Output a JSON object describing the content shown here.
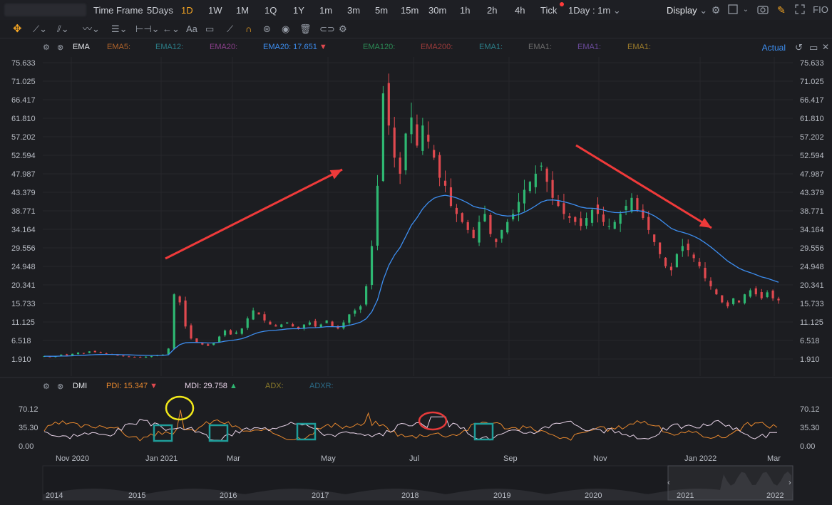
{
  "toolbar": {
    "time_frame_label": "Time Frame",
    "timeframes": [
      "5Days",
      "1D",
      "1W",
      "1M",
      "1Q",
      "1Y",
      "1m",
      "3m",
      "5m",
      "15m",
      "30m",
      "1h",
      "2h",
      "4h",
      "Tick"
    ],
    "active_timeframe": "1D",
    "interval_label": "1Day : 1m",
    "display_label": "Display",
    "brand_label": "FIO",
    "text_tool_label": "Aa",
    "icons": [
      "settings-icon",
      "checkbox-icon",
      "camera-icon",
      "pencil-icon",
      "fullscreen-icon"
    ]
  },
  "legend": {
    "indicator": "EMA",
    "items": [
      {
        "label": "EMA5:",
        "color": "#b1642a"
      },
      {
        "label": "EMA12:",
        "color": "#2b7c86"
      },
      {
        "label": "EMA20:",
        "color": "#8a3f8a"
      },
      {
        "label": "EMA20: 17.651",
        "color": "#3d8ef0",
        "arrow": "▼"
      },
      {
        "label": "EMA120:",
        "color": "#2b8a55"
      },
      {
        "label": "EMA200:",
        "color": "#9a3a3a"
      },
      {
        "label": "EMA1:",
        "color": "#2b7c86"
      },
      {
        "label": "EMA1:",
        "color": "#6a6a6a"
      },
      {
        "label": "EMA1:",
        "color": "#6a4a9a"
      },
      {
        "label": "EMA1:",
        "color": "#9a7a2a"
      }
    ],
    "actual_label": "Actual"
  },
  "dmi_legend": {
    "indicator": "DMI",
    "pdi": "PDI: 15.347",
    "mdi": "MDI: 29.758",
    "adx": "ADX:",
    "adxr": "ADXR:"
  },
  "colors": {
    "up": "#2eb872",
    "down": "#e0494f",
    "ema": "#3d8ef0",
    "pdi": "#e8882e",
    "mdi": "#e9d4e9",
    "annotation_arrow": "#ef3a3a",
    "yellow_circle": "#f1e81a",
    "red_circle": "#e53a3a",
    "teal_box": "#1f9d9a"
  },
  "chart_data": {
    "type": "candlestick",
    "y_ticks": [
      "75.633",
      "71.025",
      "66.417",
      "61.810",
      "57.202",
      "52.594",
      "47.987",
      "43.379",
      "38.771",
      "34.164",
      "29.556",
      "24.948",
      "20.341",
      "15.733",
      "11.125",
      "6.518",
      "1.910"
    ],
    "ylim": [
      1.91,
      75.633
    ],
    "x_ticks": [
      "Nov 2020",
      "Jan 2021",
      "Mar",
      "May",
      "Jul",
      "Sep",
      "Nov",
      "Jan 2022",
      "Mar"
    ],
    "close_path": [
      2.6,
      2.4,
      2.7,
      3.0,
      2.8,
      3.2,
      3.5,
      3.3,
      3.8,
      3.6,
      3.4,
      3.2,
      3.0,
      2.8,
      2.6,
      2.5,
      2.4,
      2.3,
      2.5,
      2.6,
      2.8,
      3.0,
      4.5,
      18.0,
      16.0,
      10.0,
      7.0,
      6.0,
      5.5,
      5.2,
      6.0,
      7.5,
      9.0,
      8.0,
      8.5,
      9.5,
      12.0,
      14.0,
      13.0,
      11.5,
      10.5,
      10.0,
      10.5,
      11.0,
      10.0,
      9.5,
      10.5,
      11.0,
      10.0,
      10.5,
      11.5,
      10.0,
      9.5,
      11.0,
      13.0,
      14.0,
      15.0,
      20.0,
      30.0,
      45.0,
      68.0,
      60.0,
      52.0,
      48.0,
      58.0,
      62.0,
      55.0,
      60.0,
      56.0,
      52.0,
      47.0,
      45.0,
      40.0,
      38.0,
      36.0,
      34.0,
      32.0,
      36.0,
      38.0,
      33.0,
      31.0,
      34.0,
      36.0,
      38.0,
      41.0,
      44.0,
      46.0,
      48.0,
      50.0,
      46.0,
      42.0,
      40.0,
      38.0,
      37.0,
      36.0,
      35.0,
      37.0,
      39.0,
      38.0,
      36.0,
      35.0,
      36.0,
      38.0,
      40.0,
      42.0,
      39.0,
      37.0,
      34.0,
      31.0,
      28.0,
      25.0,
      24.0,
      28.0,
      30.0,
      29.0,
      27.0,
      25.0,
      22.0,
      20.0,
      18.0,
      16.0,
      15.0,
      17.0,
      16.0,
      18.0,
      19.0,
      18.0,
      17.0,
      18.5,
      17.0,
      16.5
    ],
    "ema20_last": 17.651,
    "dmi_ticks": [
      "70.12",
      "35.30",
      "0.00"
    ],
    "dmi_ylim": [
      0,
      70.12
    ],
    "timeline_years": [
      "2014",
      "2015",
      "2016",
      "2017",
      "2018",
      "2019",
      "2020",
      "2021",
      "2022"
    ]
  }
}
